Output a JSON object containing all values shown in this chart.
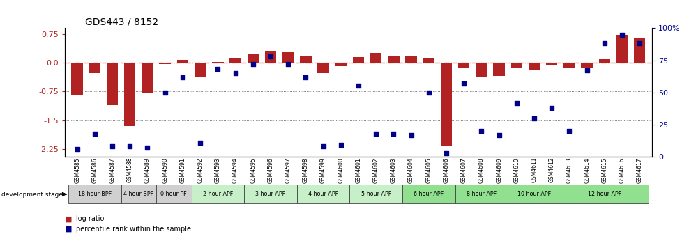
{
  "title": "GDS443 / 8152",
  "samples": [
    "GSM4585",
    "GSM4586",
    "GSM4587",
    "GSM4588",
    "GSM4589",
    "GSM4590",
    "GSM4591",
    "GSM4592",
    "GSM4593",
    "GSM4594",
    "GSM4595",
    "GSM4596",
    "GSM4597",
    "GSM4598",
    "GSM4599",
    "GSM4600",
    "GSM4601",
    "GSM4602",
    "GSM4603",
    "GSM4604",
    "GSM4605",
    "GSM4606",
    "GSM4607",
    "GSM4608",
    "GSM4609",
    "GSM4610",
    "GSM4611",
    "GSM4612",
    "GSM4613",
    "GSM4614",
    "GSM4615",
    "GSM4616",
    "GSM4617"
  ],
  "log_ratio": [
    -0.85,
    -0.28,
    -1.1,
    -1.65,
    -0.8,
    -0.04,
    0.08,
    -0.38,
    0.02,
    0.12,
    0.22,
    0.3,
    0.28,
    0.18,
    -0.27,
    -0.1,
    0.15,
    0.25,
    0.18,
    0.17,
    0.12,
    -2.15,
    -0.12,
    -0.38,
    -0.35,
    -0.15,
    -0.18,
    -0.08,
    -0.12,
    -0.15,
    0.1,
    0.73,
    0.63
  ],
  "percentile": [
    6,
    18,
    8,
    8,
    7,
    50,
    62,
    11,
    68,
    65,
    72,
    78,
    72,
    62,
    8,
    9,
    55,
    18,
    18,
    17,
    50,
    3,
    57,
    20,
    17,
    42,
    30,
    38,
    20,
    67,
    88,
    95,
    88
  ],
  "groups": [
    {
      "label": "18 hour BPF",
      "start": 0,
      "end": 3,
      "color": "#d0d0d0"
    },
    {
      "label": "4 hour BPF",
      "start": 3,
      "end": 5,
      "color": "#d0d0d0"
    },
    {
      "label": "0 hour PF",
      "start": 5,
      "end": 7,
      "color": "#d0d0d0"
    },
    {
      "label": "2 hour APF",
      "start": 7,
      "end": 10,
      "color": "#c8f0c8"
    },
    {
      "label": "3 hour APF",
      "start": 10,
      "end": 13,
      "color": "#c8f0c8"
    },
    {
      "label": "4 hour APF",
      "start": 13,
      "end": 16,
      "color": "#c8f0c8"
    },
    {
      "label": "5 hour APF",
      "start": 16,
      "end": 19,
      "color": "#c8f0c8"
    },
    {
      "label": "6 hour APF",
      "start": 19,
      "end": 22,
      "color": "#90e090"
    },
    {
      "label": "8 hour APF",
      "start": 22,
      "end": 25,
      "color": "#90e090"
    },
    {
      "label": "10 hour APF",
      "start": 25,
      "end": 28,
      "color": "#90e090"
    },
    {
      "label": "12 hour APF",
      "start": 28,
      "end": 33,
      "color": "#90e090"
    }
  ],
  "ylim_left": [
    -2.45,
    0.9
  ],
  "yticks_left": [
    0.75,
    0.0,
    -0.75,
    -1.5,
    -2.25
  ],
  "ylim_right": [
    0,
    100
  ],
  "yticks_right": [
    100,
    75,
    50,
    25,
    0
  ],
  "bar_color": "#b22222",
  "point_color": "#00008b",
  "zero_line_color": "#cc2222",
  "hline_color": "#555555",
  "bg_color": "#ffffff",
  "dev_stage_label": "development stage",
  "legend_bar": "log ratio",
  "legend_dot": "percentile rank within the sample"
}
